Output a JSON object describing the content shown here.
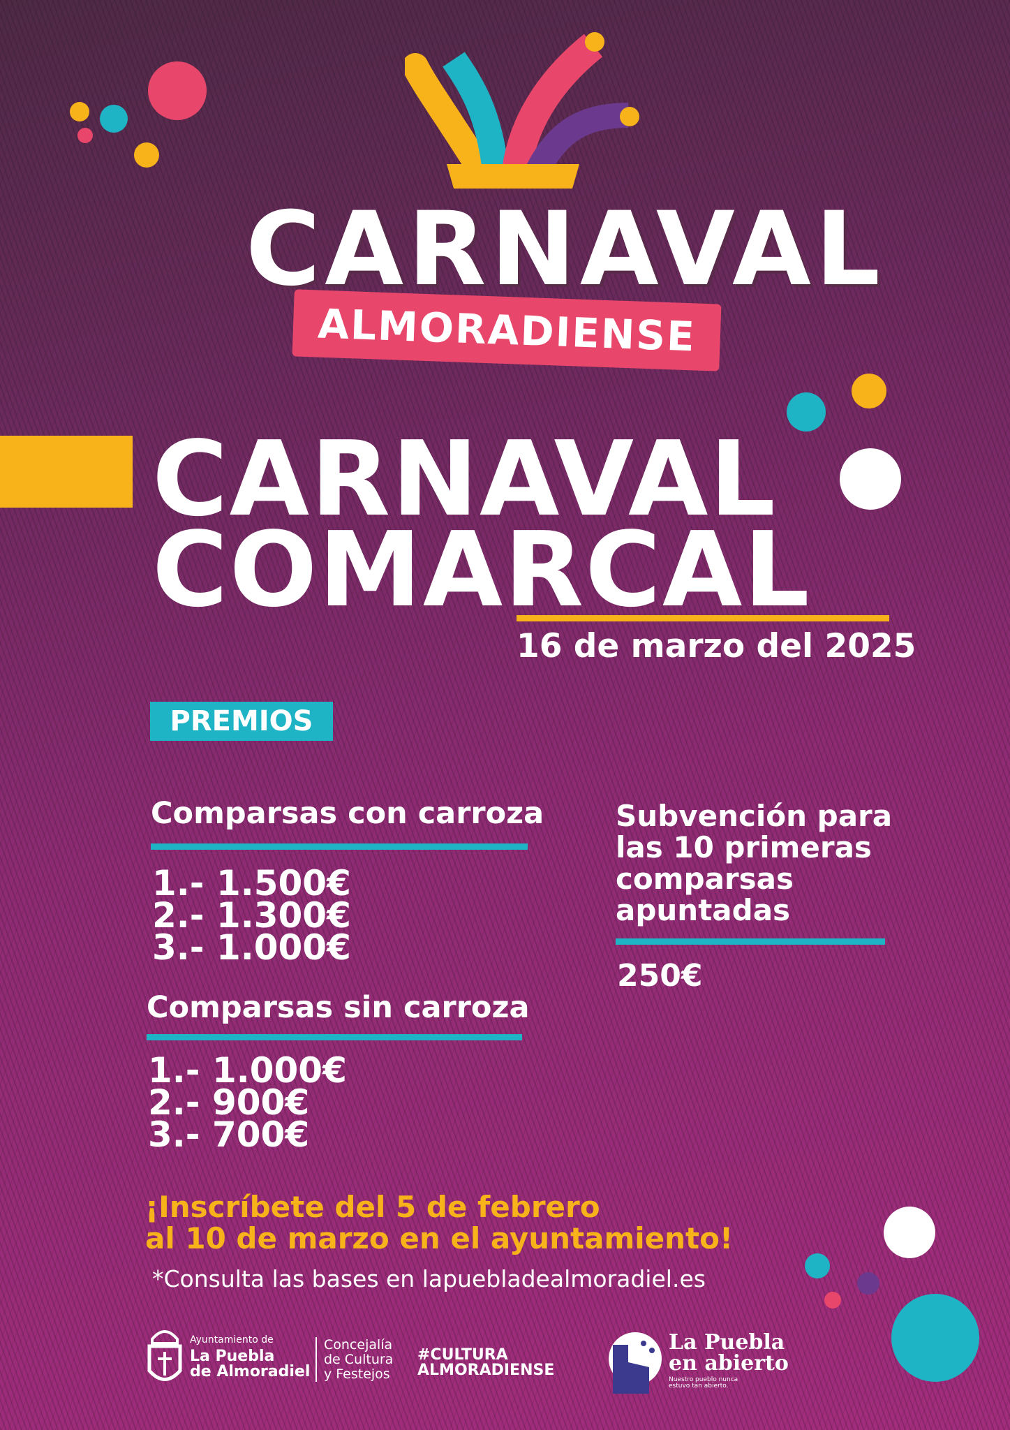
{
  "logo": {
    "title": "CARNAVAL",
    "banner": "ALMORADIENSE"
  },
  "event": {
    "title_line1": "CARNAVAL",
    "title_line2": "COMARCAL",
    "date": "16 de marzo del 2025"
  },
  "prizes": {
    "badge": "PREMIOS",
    "with_float": {
      "heading": "Comparsas con carroza",
      "items": [
        "1.- 1.500€",
        "2.- 1.300€",
        "3.- 1.000€"
      ]
    },
    "without_float": {
      "heading": "Comparsas sin carroza",
      "items": [
        "1.- 1.000€",
        "2.- 900€",
        "3.- 700€"
      ]
    },
    "subsidy": {
      "heading_lines": [
        "Subvención para",
        "las 10 primeras",
        "comparsas",
        "apuntadas"
      ],
      "amount": "250€"
    }
  },
  "registration": {
    "line1": "¡Inscríbete del 5 de febrero",
    "line2": "al 10 de marzo en el ayuntamiento!",
    "note": "*Consulta las bases en lapuebladealmoradiel.es"
  },
  "footer": {
    "ayuntamiento": {
      "small": "Ayuntamiento de",
      "line1": "La Puebla",
      "line2": "de Almoradiel"
    },
    "concejalia": [
      "Concejalía",
      "de Cultura",
      "y Festejos"
    ],
    "hashtag": [
      "#CULTURA",
      "ALMORADIENSE"
    ],
    "brand": {
      "line1": "La Puebla",
      "line2": "en abierto",
      "tagline1": "Nuestro pueblo nunca",
      "tagline2": "estuvo tan abierto."
    }
  },
  "colors": {
    "background": "#9b2b76",
    "yellow": "#f8b21a",
    "cyan": "#1fb3c6",
    "pink": "#e8466a",
    "white": "#ffffff"
  }
}
